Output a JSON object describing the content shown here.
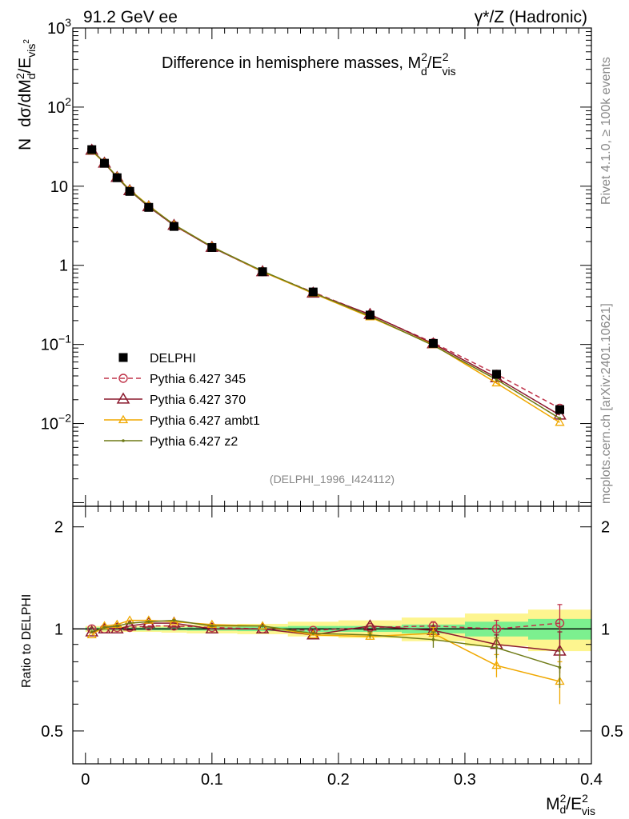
{
  "header": {
    "left": "91.2 GeV ee",
    "right": "γ*/Z (Hadronic)"
  },
  "side_labels": {
    "top": "Rivet 4.1.0, ≥ 100k events",
    "bottom": "mcplots.cern.ch [arXiv:2401.10621]"
  },
  "chart_data": {
    "type": "line",
    "title": "Difference in hemisphere masses, M_d^2/E_vis^2",
    "title_main": "Difference in hemisphere masses, M",
    "title_sup": "2",
    "title_sub": "d",
    "title_tail": "/E",
    "title_tail_sup": "2",
    "title_tail_sub": "vis",
    "analysis_tag": "(DELPHI_1996_I424112)",
    "ylabel": {
      "prefix": "N",
      "main": "dσ/dM",
      "sup": "2",
      "sub": "d",
      "tail": "/E",
      "tail_sub": "vis",
      "tail_sup": "2"
    },
    "xlabel": {
      "main": "M",
      "sup": "2",
      "sub": "d",
      "tail": "/E",
      "tail_sup": "2",
      "tail_sub": "vis"
    },
    "xlim": [
      -0.01,
      0.4
    ],
    "ylim_log": [
      0.0009,
      1000
    ],
    "ratio_ylabel": "Ratio to DELPHI",
    "ratio_ylim": [
      0.4,
      2.3
    ],
    "x_ticks": [
      "0",
      "0.1",
      "0.2",
      "0.3",
      "0.4"
    ],
    "y_ticks_main": [
      {
        "v": 1000,
        "base": "10",
        "exp": "3"
      },
      {
        "v": 100,
        "base": "10",
        "exp": "2"
      },
      {
        "v": 10,
        "base": "10",
        "exp": ""
      },
      {
        "v": 1,
        "base": "1",
        "exp": ""
      },
      {
        "v": 0.1,
        "base": "10",
        "exp": "−1"
      },
      {
        "v": 0.01,
        "base": "10",
        "exp": "−2"
      }
    ],
    "y_ticks_ratio": [
      {
        "v": 2,
        "label": "2"
      },
      {
        "v": 1,
        "label": "1"
      },
      {
        "v": 0.5,
        "label": "0.5"
      }
    ],
    "x": [
      0.005,
      0.015,
      0.025,
      0.035,
      0.05,
      0.07,
      0.1,
      0.14,
      0.18,
      0.225,
      0.275,
      0.325,
      0.375
    ],
    "bin_edges": [
      0.0,
      0.01,
      0.02,
      0.03,
      0.04,
      0.06,
      0.08,
      0.12,
      0.16,
      0.2,
      0.25,
      0.3,
      0.35,
      0.4
    ],
    "data_band_inner": [
      0.01,
      0.01,
      0.01,
      0.01,
      0.01,
      0.01,
      0.012,
      0.015,
      0.02,
      0.02,
      0.03,
      0.05,
      0.07
    ],
    "data_band_outer": [
      0.02,
      0.02,
      0.02,
      0.02,
      0.02,
      0.025,
      0.03,
      0.035,
      0.05,
      0.06,
      0.08,
      0.11,
      0.14
    ],
    "series": [
      {
        "name": "DELPHI",
        "color": "#000000",
        "marker": "square",
        "dashed": false,
        "values": [
          29.0,
          19.5,
          12.8,
          8.6,
          5.4,
          3.1,
          1.68,
          0.83,
          0.46,
          0.235,
          0.103,
          0.042,
          0.015
        ],
        "ratio": [
          1,
          1,
          1,
          1,
          1,
          1,
          1,
          1,
          1,
          1,
          1,
          1,
          1
        ],
        "ratio_err": []
      },
      {
        "name": "Pythia 6.427 345",
        "color": "#c0344a",
        "marker": "circle",
        "dashed": true,
        "values": [
          29.2,
          19.7,
          13.0,
          8.8,
          5.5,
          3.2,
          1.69,
          0.83,
          0.458,
          0.237,
          0.105,
          0.042,
          0.0156
        ],
        "ratio": [
          1.0,
          1.0,
          1.01,
          1.01,
          1.02,
          1.02,
          1.01,
          1.0,
          0.99,
          1.01,
          1.02,
          1.0,
          1.04
        ],
        "ratio_err": [
          0,
          0,
          0,
          0,
          0,
          0,
          0,
          0,
          0,
          0,
          0.03,
          0.06,
          0.14
        ]
      },
      {
        "name": "Pythia 6.427 370",
        "color": "#8b1a2e",
        "marker": "triangle",
        "dashed": false,
        "values": [
          28.5,
          19.6,
          12.9,
          8.8,
          5.5,
          3.2,
          1.69,
          0.83,
          0.445,
          0.24,
          0.102,
          0.038,
          0.0128
        ],
        "ratio": [
          0.98,
          1.0,
          1.0,
          1.02,
          1.04,
          1.04,
          1.0,
          1.0,
          0.96,
          1.02,
          0.99,
          0.9,
          0.86
        ],
        "ratio_err": [
          0,
          0,
          0,
          0,
          0,
          0,
          0,
          0,
          0,
          0,
          0.03,
          0.06,
          0.12
        ]
      },
      {
        "name": "Pythia 6.427 ambt1",
        "color": "#f0a800",
        "marker": "triangle-small",
        "dashed": false,
        "values": [
          27.8,
          19.8,
          13.2,
          9.0,
          5.7,
          3.25,
          1.72,
          0.83,
          0.442,
          0.222,
          0.099,
          0.0325,
          0.0103
        ],
        "ratio": [
          0.96,
          1.02,
          1.03,
          1.06,
          1.06,
          1.05,
          1.03,
          1.02,
          0.96,
          0.95,
          0.97,
          0.78,
          0.7
        ],
        "ratio_err": [
          0,
          0,
          0,
          0,
          0,
          0,
          0,
          0,
          0,
          0.02,
          0.04,
          0.06,
          0.1
        ]
      },
      {
        "name": "Pythia 6.427 z2",
        "color": "#6e7a16",
        "marker": "dot",
        "dashed": false,
        "values": [
          28.3,
          19.9,
          13.1,
          8.9,
          5.6,
          3.28,
          1.71,
          0.845,
          0.45,
          0.228,
          0.097,
          0.036,
          0.0116
        ],
        "ratio": [
          0.98,
          1.01,
          1.02,
          1.04,
          1.05,
          1.06,
          1.02,
          1.02,
          0.97,
          0.96,
          0.93,
          0.88,
          0.77
        ],
        "ratio_err": [
          0,
          0,
          0,
          0,
          0,
          0,
          0,
          0,
          0,
          0.02,
          0.05,
          0.06,
          0.1
        ]
      }
    ]
  }
}
